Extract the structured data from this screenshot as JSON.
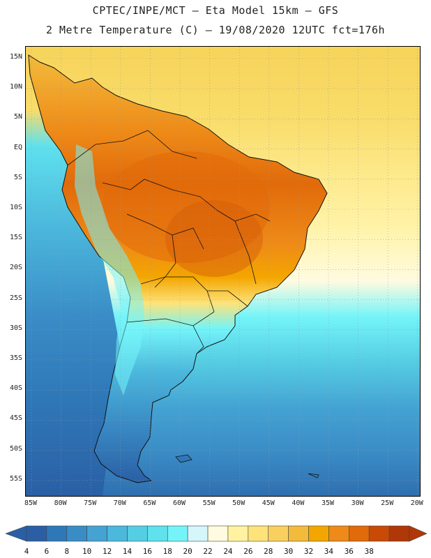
{
  "header": {
    "line1": "CPTEC/INPE/MCT  –  Eta Model 15km – GFS",
    "line2": "2 Metre Temperature (C) – 19/08/2020 12UTC fct=176h"
  },
  "map": {
    "lat_labels": [
      "15N",
      "10N",
      "5N",
      "EQ",
      "5S",
      "10S",
      "15S",
      "20S",
      "25S",
      "30S",
      "35S",
      "40S",
      "45S",
      "50S",
      "55S"
    ],
    "lon_labels": [
      "85W",
      "80W",
      "75W",
      "70W",
      "65W",
      "60W",
      "55W",
      "50W",
      "45W",
      "40W",
      "35W",
      "30W",
      "25W",
      "20W"
    ]
  },
  "colorbar": {
    "labels": [
      "4",
      "6",
      "8",
      "10",
      "12",
      "14",
      "16",
      "18",
      "20",
      "22",
      "24",
      "26",
      "28",
      "30",
      "32",
      "34",
      "36",
      "38"
    ],
    "colors": [
      "#2a5fa5",
      "#2f78b8",
      "#3a8cc6",
      "#44a3d3",
      "#4bb8dc",
      "#55cde3",
      "#5fe1ee",
      "#74f4f9",
      "#d5f6fb",
      "#fffbe0",
      "#fff3a2",
      "#fde37a",
      "#f9d060",
      "#f3bb3b",
      "#f4a600",
      "#ee8a18",
      "#e16a0a",
      "#c84a06",
      "#b03808"
    ],
    "under_color": "#2a5fa5",
    "over_color": "#b03808"
  }
}
